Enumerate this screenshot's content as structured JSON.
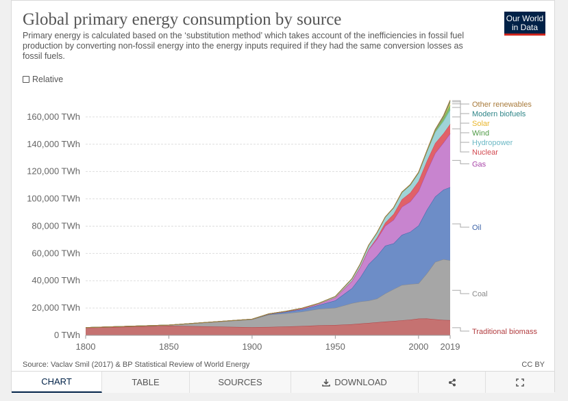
{
  "header": {
    "title": "Global primary energy consumption by source",
    "subtitle": "Primary energy is calculated based on the ‘substitution method’ which takes account of the inefficiencies in fossil fuel production by converting non-fossil energy into the energy inputs required if they had the same conversion losses as fossil fuels.",
    "logo_line1": "Our World",
    "logo_line2": "in Data",
    "relative_label": "Relative"
  },
  "footer": {
    "source": "Source: Vaclav Smil (2017) & BP Statistical Review of World Energy",
    "license": "CC BY"
  },
  "tabs": {
    "chart": "CHART",
    "table": "TABLE",
    "sources": "SOURCES",
    "download": "DOWNLOAD"
  },
  "icons": {
    "download": "download-icon",
    "share": "share-icon",
    "fullscreen": "fullscreen-icon",
    "checkbox": "checkbox-icon"
  },
  "colors": {
    "brand": "#002147",
    "brand_accent": "#ce261e"
  },
  "chart_data": {
    "type": "area",
    "stacked": true,
    "unit": "TWh",
    "x": [
      1800,
      1850,
      1900,
      1910,
      1920,
      1930,
      1940,
      1950,
      1960,
      1965,
      1970,
      1975,
      1980,
      1985,
      1990,
      1995,
      2000,
      2005,
      2010,
      2015,
      2019
    ],
    "x_ticks": [
      "1800",
      "1850",
      "1900",
      "1950",
      "2000",
      "2019"
    ],
    "y_ticks": [
      "0 TWh",
      "20,000 TWh",
      "40,000 TWh",
      "60,000 TWh",
      "80,000 TWh",
      "100,000 TWh",
      "120,000 TWh",
      "140,000 TWh",
      "160,000 TWh"
    ],
    "y_tick_values": [
      0,
      20000,
      40000,
      60000,
      80000,
      100000,
      120000,
      140000,
      160000
    ],
    "ylim": [
      0,
      175000
    ],
    "grid": true,
    "legend_position": "right",
    "series": [
      {
        "name": "Traditional biomass",
        "color": "#b13c3f",
        "fill": "#c57271",
        "values": [
          5556,
          6944,
          5900,
          6100,
          6400,
          6800,
          7300,
          7500,
          8100,
          8600,
          9000,
          9500,
          10000,
          10400,
          11000,
          11400,
          12200,
          12300,
          11700,
          11200,
          11100
        ]
      },
      {
        "name": "Coal",
        "color": "#888888",
        "fill": "#a6a6a6",
        "values": [
          97,
          570,
          5700,
          9000,
          9600,
          10500,
          12000,
          12600,
          15400,
          16100,
          16400,
          17300,
          20600,
          23400,
          25800,
          26100,
          25800,
          33000,
          42000,
          44500,
          43800
        ]
      },
      {
        "name": "Oil",
        "color": "#3c63a7",
        "fill": "#6d8dc7",
        "values": [
          0,
          0,
          180,
          330,
          1100,
          1600,
          2800,
          5400,
          11000,
          17700,
          26700,
          31300,
          35000,
          33500,
          36800,
          38300,
          42400,
          46600,
          47900,
          51000,
          53600
        ]
      },
      {
        "name": "Gas",
        "color": "#a845a8",
        "fill": "#c884cf",
        "values": [
          0,
          0,
          60,
          180,
          230,
          600,
          860,
          2100,
          5300,
          7500,
          10600,
          12300,
          14600,
          17300,
          20500,
          22100,
          25200,
          28200,
          31800,
          34500,
          39300
        ]
      },
      {
        "name": "Nuclear",
        "color": "#d24950",
        "fill": "#e06169",
        "values": [
          0,
          0,
          0,
          0,
          0,
          0,
          0,
          0,
          0,
          80,
          240,
          1100,
          2300,
          4200,
          5500,
          6500,
          7300,
          7600,
          7400,
          6800,
          7000
        ]
      },
      {
        "name": "Hydropower",
        "color": "#6cb8c5",
        "fill": "#9fd3d7",
        "values": [
          0,
          0,
          0,
          100,
          200,
          350,
          500,
          900,
          1700,
          2300,
          3000,
          3600,
          4100,
          4600,
          5100,
          5700,
          6100,
          6800,
          8000,
          9000,
          10400
        ]
      },
      {
        "name": "Wind",
        "color": "#4e9a45",
        "fill": "#7fbf77",
        "values": [
          0,
          0,
          0,
          0,
          0,
          0,
          0,
          0,
          0,
          0,
          0,
          0,
          0,
          0,
          10,
          20,
          80,
          240,
          800,
          1900,
          3500
        ]
      },
      {
        "name": "Solar",
        "color": "#e9b62b",
        "fill": "#f2ce63",
        "values": [
          0,
          0,
          0,
          0,
          0,
          0,
          0,
          0,
          0,
          0,
          0,
          0,
          0,
          0,
          1,
          1,
          3,
          10,
          100,
          600,
          1800
        ]
      },
      {
        "name": "Modern biofuels",
        "color": "#2d8487",
        "fill": "#6aa8aa",
        "values": [
          0,
          0,
          0,
          0,
          0,
          0,
          0,
          0,
          0,
          0,
          0,
          0,
          20,
          70,
          100,
          130,
          130,
          250,
          600,
          900,
          1100
        ]
      },
      {
        "name": "Other renewables",
        "color": "#a87a3a",
        "fill": "#c9a66e",
        "values": [
          0,
          0,
          0,
          0,
          0,
          0,
          0,
          0,
          0,
          10,
          30,
          50,
          100,
          150,
          200,
          250,
          300,
          380,
          520,
          620,
          700
        ]
      }
    ]
  }
}
